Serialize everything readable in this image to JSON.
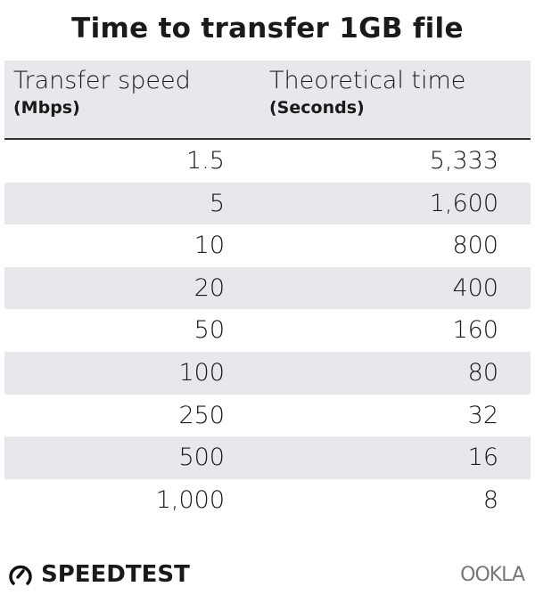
{
  "chart_data": {
    "type": "table",
    "title": "Time to transfer 1GB file",
    "columns": [
      {
        "label": "Transfer speed",
        "unit": "(Mbps)"
      },
      {
        "label": "Theoretical time",
        "unit": "(Seconds)"
      }
    ],
    "rows": [
      [
        "1.5",
        "5,333"
      ],
      [
        "5",
        "1,600"
      ],
      [
        "10",
        "800"
      ],
      [
        "20",
        "400"
      ],
      [
        "50",
        "160"
      ],
      [
        "100",
        "80"
      ],
      [
        "250",
        "32"
      ],
      [
        "500",
        "16"
      ],
      [
        "1,000",
        "8"
      ]
    ]
  },
  "branding": {
    "left": "SPEEDTEST",
    "right": "OOKLA"
  },
  "colors": {
    "stripe": "#e8e8ec",
    "text": "#1a1a1a"
  }
}
